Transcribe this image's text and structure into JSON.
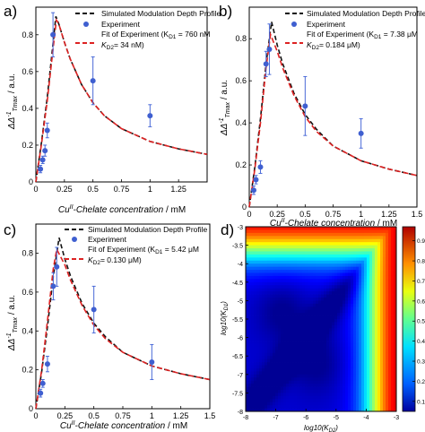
{
  "colors": {
    "sim": "#111111",
    "fit": "#dd2222",
    "exp": "#3f5fd0",
    "errbar": "#4a6ad8",
    "axis": "#000000"
  },
  "legend": {
    "sim": "Simulated Modulation Depth Profile",
    "exp": "Experiment"
  },
  "chart_data": [
    {
      "type": "line",
      "panel_label": "a)",
      "xlabel_pre": "Cu",
      "xlabel_sup": "II",
      "xlabel_post": "-Chelate concentration",
      "xunit": "/ mM",
      "ylabel_pre": "ΔΔ",
      "ylabel_sup": "-1",
      "ylabel_sub": "Tmax",
      "yunit": "/ a.u.",
      "xlim": [
        0,
        1.5
      ],
      "ylim": [
        0,
        0.95
      ],
      "xticks": [
        0,
        0.25,
        0.5,
        0.75,
        1.0,
        1.25
      ],
      "xtick_labels": [
        "0",
        "0.25",
        "0.5",
        "0.75",
        "1",
        "1.25"
      ],
      "yticks": [
        0,
        0.2,
        0.4,
        0.6,
        0.8
      ],
      "ytick_labels": [
        "0",
        "0.2",
        "0.4",
        "0.6",
        "0.8"
      ],
      "fit_label_1": "Fit of Experiment (K",
      "fit_label_1_sub": "D1",
      "fit_label_1_val": " = 760 nM",
      "fit_label_2_pre": "K",
      "fit_label_2_sub": "D2",
      "fit_label_2_val": "= 34 nM)",
      "series": [
        {
          "name": "Simulated Modulation Depth Profile",
          "style": "sim",
          "x": [
            0,
            0.05,
            0.1,
            0.15,
            0.175,
            0.2,
            0.25,
            0.3,
            0.4,
            0.5,
            0.6,
            0.75,
            1.0,
            1.25,
            1.5
          ],
          "y": [
            0,
            0.22,
            0.46,
            0.75,
            0.9,
            0.86,
            0.76,
            0.67,
            0.53,
            0.43,
            0.36,
            0.29,
            0.22,
            0.18,
            0.15
          ]
        },
        {
          "name": "Fit of Experiment",
          "style": "fit",
          "x": [
            0,
            0.05,
            0.1,
            0.15,
            0.18,
            0.2,
            0.25,
            0.3,
            0.4,
            0.5,
            0.6,
            0.75,
            1.0,
            1.25,
            1.5
          ],
          "y": [
            0,
            0.21,
            0.44,
            0.72,
            0.88,
            0.86,
            0.76,
            0.67,
            0.53,
            0.43,
            0.36,
            0.29,
            0.22,
            0.18,
            0.15
          ]
        },
        {
          "name": "Experiment",
          "style": "exp",
          "x": [
            0.04,
            0.06,
            0.08,
            0.1,
            0.15,
            0.5,
            1.0
          ],
          "y": [
            0.07,
            0.12,
            0.17,
            0.28,
            0.8,
            0.55,
            0.36
          ],
          "err": [
            0.02,
            0.02,
            0.03,
            0.04,
            0.12,
            0.13,
            0.06
          ]
        }
      ]
    },
    {
      "type": "line",
      "panel_label": "b)",
      "xlabel_pre": "Cu",
      "xlabel_sup": "II",
      "xlabel_post": "-Chelate concentration",
      "xunit": "/ mM",
      "ylabel_pre": "ΔΔ",
      "ylabel_sup": "-1",
      "ylabel_sub": "Tmax",
      "yunit": "/ a.u.",
      "xlim": [
        0,
        1.5
      ],
      "ylim": [
        0,
        0.95
      ],
      "xticks": [
        0,
        0.25,
        0.5,
        0.75,
        1.0,
        1.25,
        1.5
      ],
      "xtick_labels": [
        "0",
        "0.25",
        "0.5",
        "0.75",
        "1",
        "1.25",
        "1.5"
      ],
      "yticks": [
        0,
        0.2,
        0.4,
        0.6,
        0.8
      ],
      "ytick_labels": [
        "0",
        "0.2",
        "0.4",
        "0.6",
        "0.8"
      ],
      "fit_label_1": "Fit of Experiment (K",
      "fit_label_1_sub": "D1",
      "fit_label_1_val": " = 7.38 μM",
      "fit_label_2_pre": "K",
      "fit_label_2_sub": "D2",
      "fit_label_2_val": "= 0.184 μM)",
      "series": [
        {
          "name": "Simulated Modulation Depth Profile",
          "style": "sim",
          "x": [
            0,
            0.05,
            0.1,
            0.15,
            0.2,
            0.25,
            0.3,
            0.4,
            0.5,
            0.6,
            0.75,
            1.0,
            1.25,
            1.5
          ],
          "y": [
            0,
            0.19,
            0.42,
            0.68,
            0.88,
            0.77,
            0.68,
            0.54,
            0.44,
            0.37,
            0.29,
            0.22,
            0.18,
            0.15
          ]
        },
        {
          "name": "Fit of Experiment",
          "style": "fit",
          "x": [
            0,
            0.05,
            0.1,
            0.15,
            0.19,
            0.25,
            0.3,
            0.4,
            0.5,
            0.6,
            0.75,
            1.0,
            1.25,
            1.5
          ],
          "y": [
            0,
            0.18,
            0.4,
            0.66,
            0.82,
            0.74,
            0.66,
            0.53,
            0.43,
            0.36,
            0.29,
            0.22,
            0.18,
            0.15
          ]
        },
        {
          "name": "Experiment",
          "style": "exp",
          "x": [
            0.04,
            0.06,
            0.1,
            0.15,
            0.18,
            0.5,
            1.0
          ],
          "y": [
            0.08,
            0.13,
            0.19,
            0.68,
            0.75,
            0.48,
            0.35
          ],
          "err": [
            0.02,
            0.02,
            0.03,
            0.06,
            0.12,
            0.14,
            0.07
          ]
        }
      ]
    },
    {
      "type": "line",
      "panel_label": "c)",
      "xlabel_pre": "Cu",
      "xlabel_sup": "II",
      "xlabel_post": "-Chelate concentration",
      "xunit": "/ mM",
      "ylabel_pre": "ΔΔ",
      "ylabel_sup": "-1",
      "ylabel_sub": "Tmax",
      "yunit": "/ a.u.",
      "xlim": [
        0,
        1.5
      ],
      "ylim": [
        0,
        0.95
      ],
      "xticks": [
        0,
        0.25,
        0.5,
        0.75,
        1.0,
        1.25,
        1.5
      ],
      "xtick_labels": [
        "0",
        "0.25",
        "0.5",
        "0.75",
        "1",
        "1.25",
        "1.5"
      ],
      "yticks": [
        0,
        0.2,
        0.4,
        0.6,
        0.8
      ],
      "ytick_labels": [
        "0",
        "0.2",
        "0.4",
        "0.6",
        "0.8"
      ],
      "fit_label_1": "Fit of Experiment (K",
      "fit_label_1_sub": "D1",
      "fit_label_1_val": " = 5.42 μM",
      "fit_label_2_pre": "K",
      "fit_label_2_sub": "D2",
      "fit_label_2_val": "= 0.130 μM)",
      "series": [
        {
          "name": "Simulated Modulation Depth Profile",
          "style": "sim",
          "x": [
            0,
            0.05,
            0.1,
            0.15,
            0.2,
            0.25,
            0.3,
            0.4,
            0.5,
            0.6,
            0.75,
            1.0,
            1.25,
            1.5
          ],
          "y": [
            0,
            0.19,
            0.42,
            0.68,
            0.88,
            0.77,
            0.68,
            0.54,
            0.44,
            0.37,
            0.29,
            0.22,
            0.18,
            0.15
          ]
        },
        {
          "name": "Fit of Experiment",
          "style": "fit",
          "x": [
            0,
            0.05,
            0.1,
            0.15,
            0.18,
            0.25,
            0.3,
            0.4,
            0.5,
            0.6,
            0.75,
            1.0,
            1.25,
            1.5
          ],
          "y": [
            0,
            0.2,
            0.45,
            0.72,
            0.82,
            0.74,
            0.66,
            0.53,
            0.43,
            0.36,
            0.29,
            0.22,
            0.18,
            0.15
          ]
        },
        {
          "name": "Experiment",
          "style": "exp",
          "x": [
            0.04,
            0.06,
            0.1,
            0.15,
            0.18,
            0.5,
            1.0
          ],
          "y": [
            0.08,
            0.13,
            0.23,
            0.63,
            0.73,
            0.51,
            0.24
          ],
          "err": [
            0.02,
            0.02,
            0.04,
            0.07,
            0.1,
            0.12,
            0.09
          ]
        }
      ]
    },
    {
      "type": "heatmap",
      "panel_label": "d)",
      "xlabel": "log10(K",
      "xlabel_sub": "D2",
      "xlabel_post": ")",
      "ylabel": "log10(K",
      "ylabel_sub": "D1",
      "ylabel_post": ")",
      "xlim": [
        -8,
        -3
      ],
      "ylim": [
        -8,
        -3
      ],
      "xticks": [
        -8,
        -7,
        -6,
        -5,
        -4,
        -3
      ],
      "xtick_labels": [
        "-8",
        "-7",
        "-6",
        "-5",
        "-4",
        "-3"
      ],
      "yticks": [
        -3,
        -3.5,
        -4,
        -4.5,
        -5,
        -5.5,
        -6,
        -6.5,
        -7,
        -7.5,
        -8
      ],
      "ytick_labels": [
        "-3",
        "-3.5",
        "-4",
        "-4.5",
        "-5",
        "-5.5",
        "-6",
        "-6.5",
        "-7",
        "-7.5",
        "-8"
      ],
      "colorbar_ticks": [
        0.1,
        0.2,
        0.3,
        0.4,
        0.5,
        0.6,
        0.7,
        0.8,
        0.9
      ],
      "colorbar_tick_labels": [
        "0.1",
        "0.2",
        "0.3",
        "0.4",
        "0.5",
        "0.6",
        "0.7",
        "0.8",
        "0.9"
      ],
      "colorbar_range": [
        0.05,
        0.97
      ],
      "colormap": "jet",
      "minima": [
        {
          "log10_KD2": -6.8,
          "log10_KD1": -5.3
        },
        {
          "log10_KD2": -5.6,
          "log10_KD1": -6.7
        }
      ]
    }
  ]
}
